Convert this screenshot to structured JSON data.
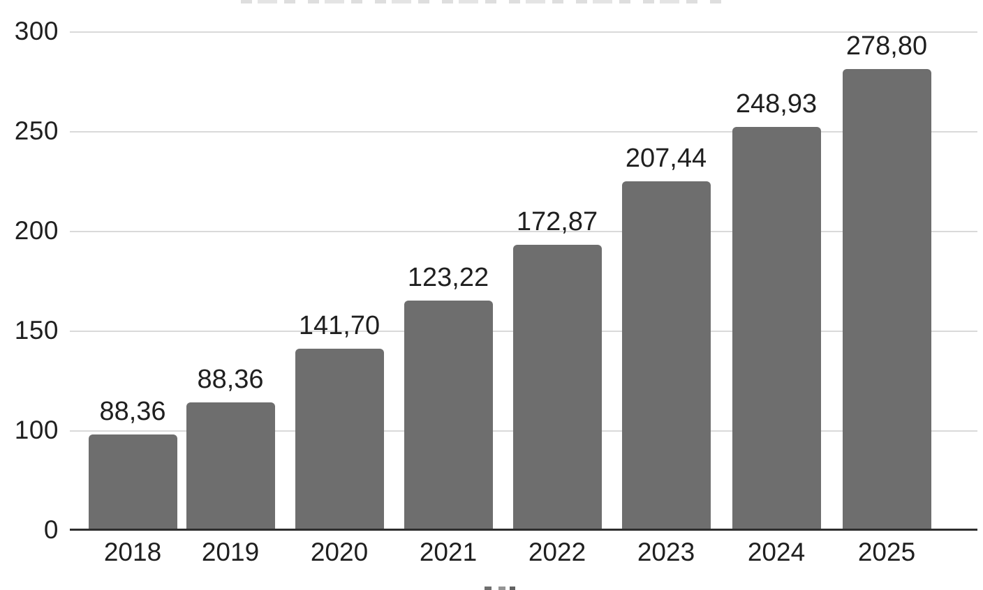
{
  "colors": {
    "background": "#ffffff",
    "bar": "#6e6e6e",
    "gridline": "#d9d9d9",
    "axis_line": "#2e2e2e",
    "text": "#1f1f1f"
  },
  "chart_data": {
    "type": "bar",
    "title": "",
    "xlabel": "",
    "ylabel": "",
    "legend": "none",
    "grid": true,
    "categories": [
      "2018",
      "2019",
      "2020",
      "2021",
      "2022",
      "2023",
      "2024",
      "2025"
    ],
    "values": [
      88.36,
      88.36,
      141.7,
      123.22,
      172.87,
      207.44,
      248.93,
      278.8
    ],
    "value_labels": [
      "88,36",
      "88,36",
      "141,70",
      "123,22",
      "172,87",
      "207,44",
      "248,93",
      "278,80"
    ],
    "apparent_bar_tops": [
      96,
      114,
      141,
      165,
      193,
      225,
      252,
      281
    ],
    "y_tick_labels_top_to_bottom": [
      "300",
      "250",
      "200",
      "150",
      "100",
      "0"
    ],
    "y_tick_values_top_to_bottom": [
      300,
      250,
      200,
      150,
      100,
      0
    ],
    "ylim": [
      0,
      300
    ],
    "axis_note": "Y ticks are evenly spaced even though the 0-to-100 step equals the 50-unit steps; drawn bar heights do not match the printed data labels. Chart title (top) and x-axis title (bottom) are cropped out of frame, only faint glyph edges remain."
  }
}
